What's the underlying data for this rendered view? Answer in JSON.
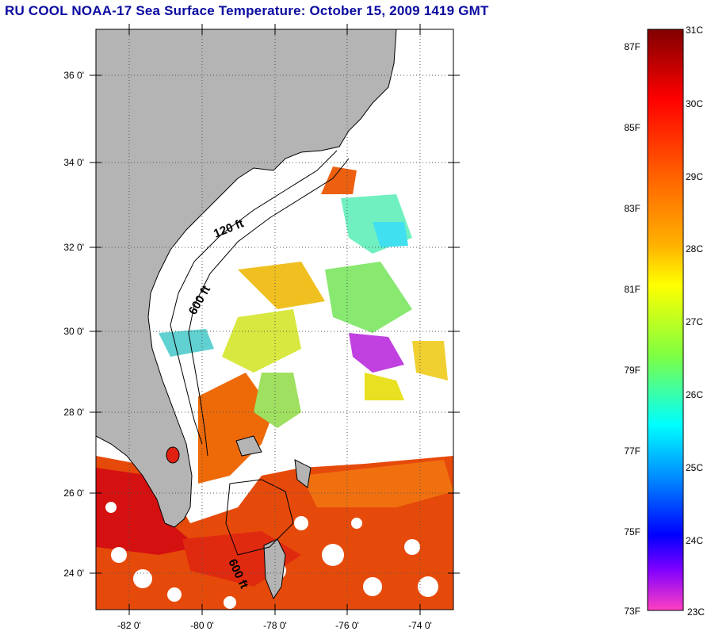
{
  "title": "RU COOL  NOAA-17  Sea Surface Temperature:  October 15, 2009 1419 GMT",
  "map": {
    "lat_labels": [
      "36 0'",
      "34 0'",
      "32 0'",
      "30 0'",
      "28 0'",
      "26 0'",
      "24 0'"
    ],
    "lon_labels": [
      "-82 0'",
      "-80 0'",
      "-78 0'",
      "-76 0'",
      "-74 0'"
    ],
    "contour_labels": [
      "120 ft",
      "600 ft",
      "600 ft"
    ],
    "colors": {
      "land": "#b4b4b4",
      "no_data": "#ffffff",
      "grid": "#000000"
    }
  },
  "colorbar": {
    "fahrenheit_labels": [
      "87F",
      "85F",
      "83F",
      "81F",
      "79F",
      "77F",
      "75F",
      "73F"
    ],
    "celsius_labels": [
      "31C",
      "30C",
      "29C",
      "28C",
      "27C",
      "26C",
      "25C",
      "24C",
      "23C"
    ],
    "range_celsius": [
      23,
      31
    ],
    "colors_top_to_bottom": [
      "#800000",
      "#ff0000",
      "#ff8000",
      "#ffff00",
      "#80ff40",
      "#00ffff",
      "#0080ff",
      "#0000ff",
      "#8000ff",
      "#ff40c0"
    ]
  }
}
